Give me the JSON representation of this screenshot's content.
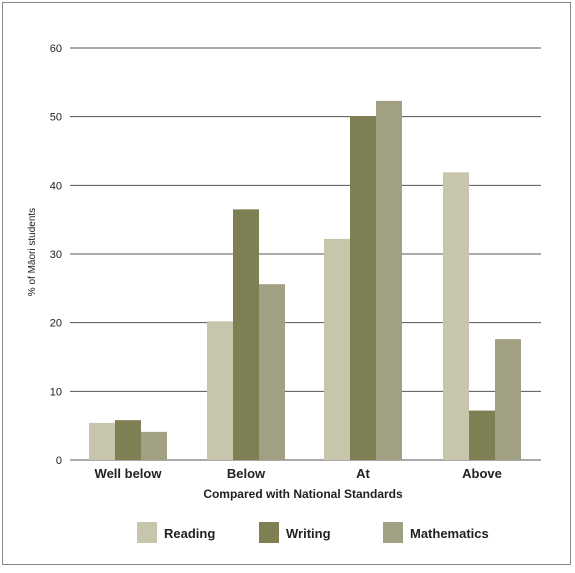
{
  "chart_data": {
    "type": "bar",
    "categories": [
      "Well below",
      "Below",
      "At",
      "Above"
    ],
    "series": [
      {
        "name": "Reading",
        "values": [
          5.4,
          20.2,
          32.2,
          41.9
        ],
        "color": "#c7c6ac"
      },
      {
        "name": "Writing",
        "values": [
          5.8,
          36.5,
          50.1,
          7.2
        ],
        "color": "#7e7f53"
      },
      {
        "name": "Mathematics",
        "values": [
          4.1,
          25.6,
          52.3,
          17.6
        ],
        "color": "#a2a083"
      }
    ],
    "title": "",
    "xlabel": "Compared with National Standards",
    "ylabel": "% of Māori students",
    "ylim": [
      0,
      60
    ],
    "yticks": [
      0,
      10,
      20,
      30,
      40,
      50,
      60
    ],
    "grid": true,
    "legend_position": "bottom"
  }
}
